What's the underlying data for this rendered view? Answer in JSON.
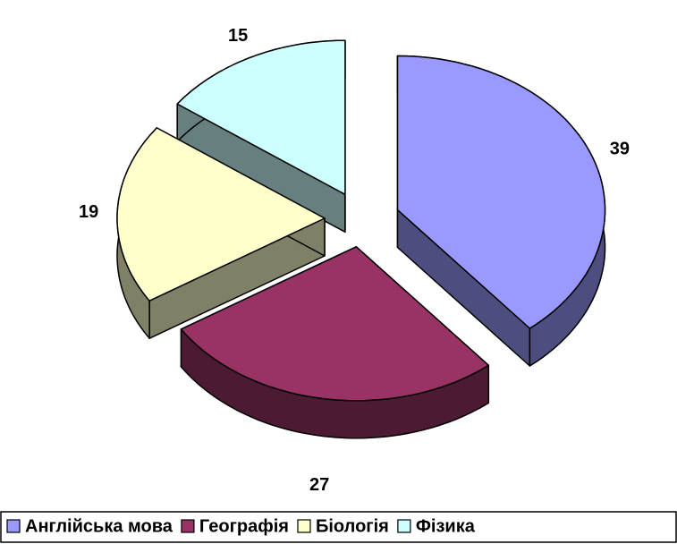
{
  "chart_data": {
    "type": "pie",
    "view": "3d-exploded",
    "categories": [
      "Англійська мова",
      "Географія",
      "Біологія",
      "Фізика"
    ],
    "values": [
      39,
      27,
      19,
      15
    ],
    "colors": [
      "#9999ff",
      "#993366",
      "#ffffcc",
      "#ccffff"
    ],
    "legend": "bottom"
  }
}
